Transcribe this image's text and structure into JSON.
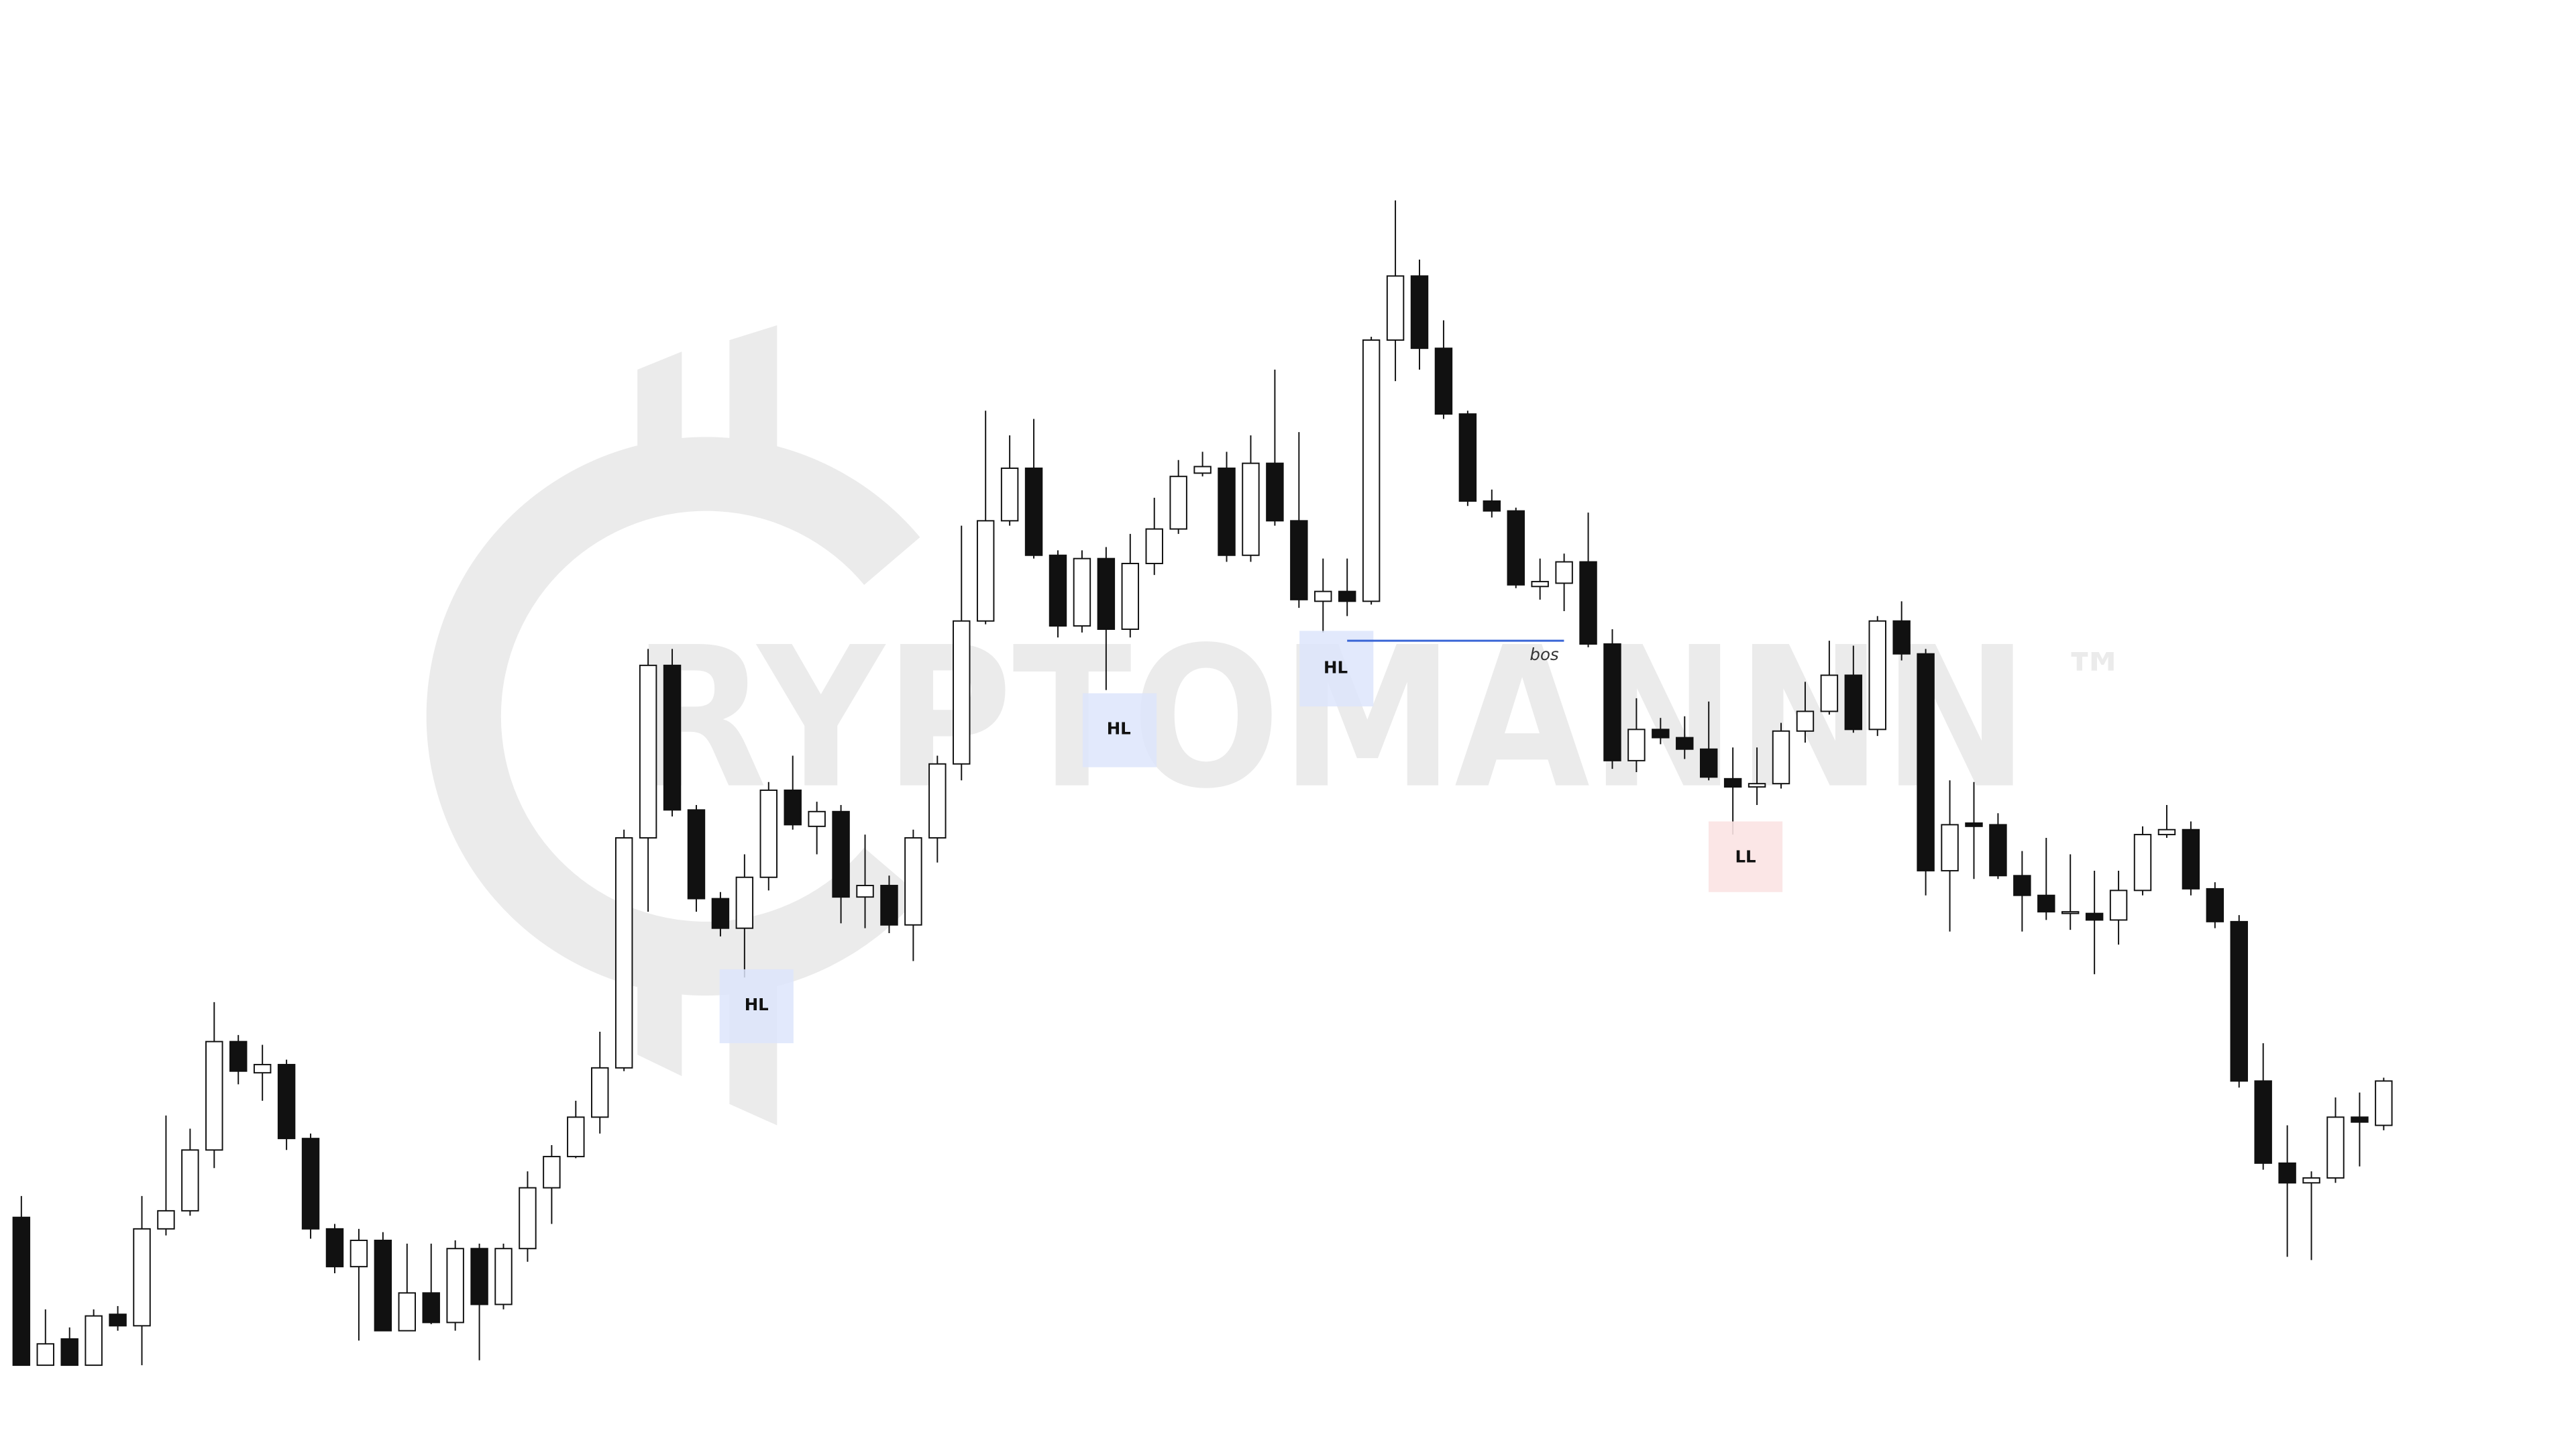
{
  "chart_data": {
    "type": "candlestick",
    "open": [
      159,
      69,
      85,
      69,
      100,
      93,
      152,
      163,
      200,
      266,
      247,
      252,
      207,
      152,
      129,
      145,
      90,
      113,
      95,
      140,
      106,
      140,
      177,
      196,
      220,
      250,
      390,
      495,
      407,
      353,
      335,
      366,
      419,
      397,
      406,
      354,
      361,
      337,
      390,
      435,
      522,
      583,
      615,
      562,
      519,
      560,
      517,
      557,
      578,
      612,
      615,
      562,
      618,
      583,
      534,
      540,
      534,
      693,
      732,
      688,
      648,
      595,
      589,
      543,
      545,
      558,
      508,
      437,
      456,
      451,
      444,
      426,
      421,
      423,
      455,
      467,
      489,
      456,
      522,
      502,
      370,
      399,
      398,
      367,
      355,
      344,
      344,
      340,
      358,
      392,
      395,
      359,
      339,
      242,
      192,
      180,
      183,
      220,
      215
    ],
    "high": [
      172,
      103,
      92,
      103,
      105,
      172,
      221,
      213,
      290,
      270,
      264,
      255,
      210,
      155,
      152,
      150,
      143,
      143,
      145,
      143,
      143,
      187,
      203,
      230,
      272,
      395,
      505,
      505,
      410,
      357,
      380,
      424,
      440,
      412,
      410,
      392,
      367,
      395,
      440,
      580,
      650,
      635,
      645,
      565,
      565,
      567,
      575,
      597,
      620,
      625,
      625,
      635,
      675,
      637,
      560,
      560,
      695,
      778,
      742,
      705,
      650,
      602,
      591,
      560,
      563,
      588,
      517,
      475,
      463,
      464,
      473,
      445,
      445,
      460,
      485,
      510,
      507,
      525,
      534,
      505,
      425,
      424,
      405,
      382,
      390,
      380,
      370,
      370,
      397,
      410,
      400,
      363,
      343,
      265,
      215,
      187,
      232,
      235,
      244
    ],
    "low": [
      69,
      69,
      69,
      69,
      90,
      69,
      148,
      160,
      189,
      240,
      230,
      200,
      146,
      125,
      84,
      90,
      90,
      94,
      90,
      72,
      103,
      132,
      155,
      195,
      210,
      248,
      345,
      403,
      345,
      330,
      305,
      358,
      395,
      380,
      338,
      335,
      332,
      315,
      375,
      425,
      520,
      580,
      560,
      512,
      515,
      480,
      512,
      550,
      575,
      610,
      558,
      558,
      580,
      530,
      515,
      525,
      532,
      668,
      675,
      645,
      592,
      585,
      542,
      535,
      528,
      506,
      432,
      430,
      447,
      438,
      425,
      392,
      410,
      420,
      448,
      465,
      454,
      452,
      498,
      355,
      333,
      365,
      365,
      333,
      340,
      334,
      307,
      325,
      355,
      390,
      355,
      335,
      238,
      188,
      135,
      133,
      180,
      190,
      212
    ],
    "close": [
      69,
      82,
      69,
      99,
      93,
      152,
      163,
      200,
      266,
      248,
      252,
      207,
      152,
      129,
      145,
      90,
      113,
      95,
      140,
      106,
      140,
      177,
      196,
      220,
      250,
      390,
      495,
      407,
      353,
      335,
      366,
      419,
      398,
      406,
      354,
      361,
      337,
      390,
      435,
      522,
      583,
      615,
      562,
      519,
      560,
      517,
      557,
      578,
      610,
      616,
      562,
      618,
      583,
      535,
      540,
      534,
      693,
      732,
      688,
      648,
      595,
      589,
      544,
      546,
      558,
      508,
      437,
      456,
      451,
      444,
      427,
      421,
      423,
      455,
      467,
      489,
      456,
      522,
      502,
      370,
      398,
      397,
      367,
      355,
      345,
      345,
      340,
      358,
      392,
      395,
      359,
      339,
      242,
      192,
      180,
      183,
      220,
      217,
      242
    ],
    "up_color": "#ffffff",
    "down_color": "#111111",
    "ylim": [
      18,
      900
    ],
    "annotations": [
      {
        "text": "HL"
      },
      {
        "text": "HL"
      },
      {
        "text": "HL"
      },
      {
        "text": "LL"
      }
    ],
    "bos_label": "bos",
    "watermark": {
      "text": "RYPTOMANNN",
      "mark": "™"
    }
  }
}
